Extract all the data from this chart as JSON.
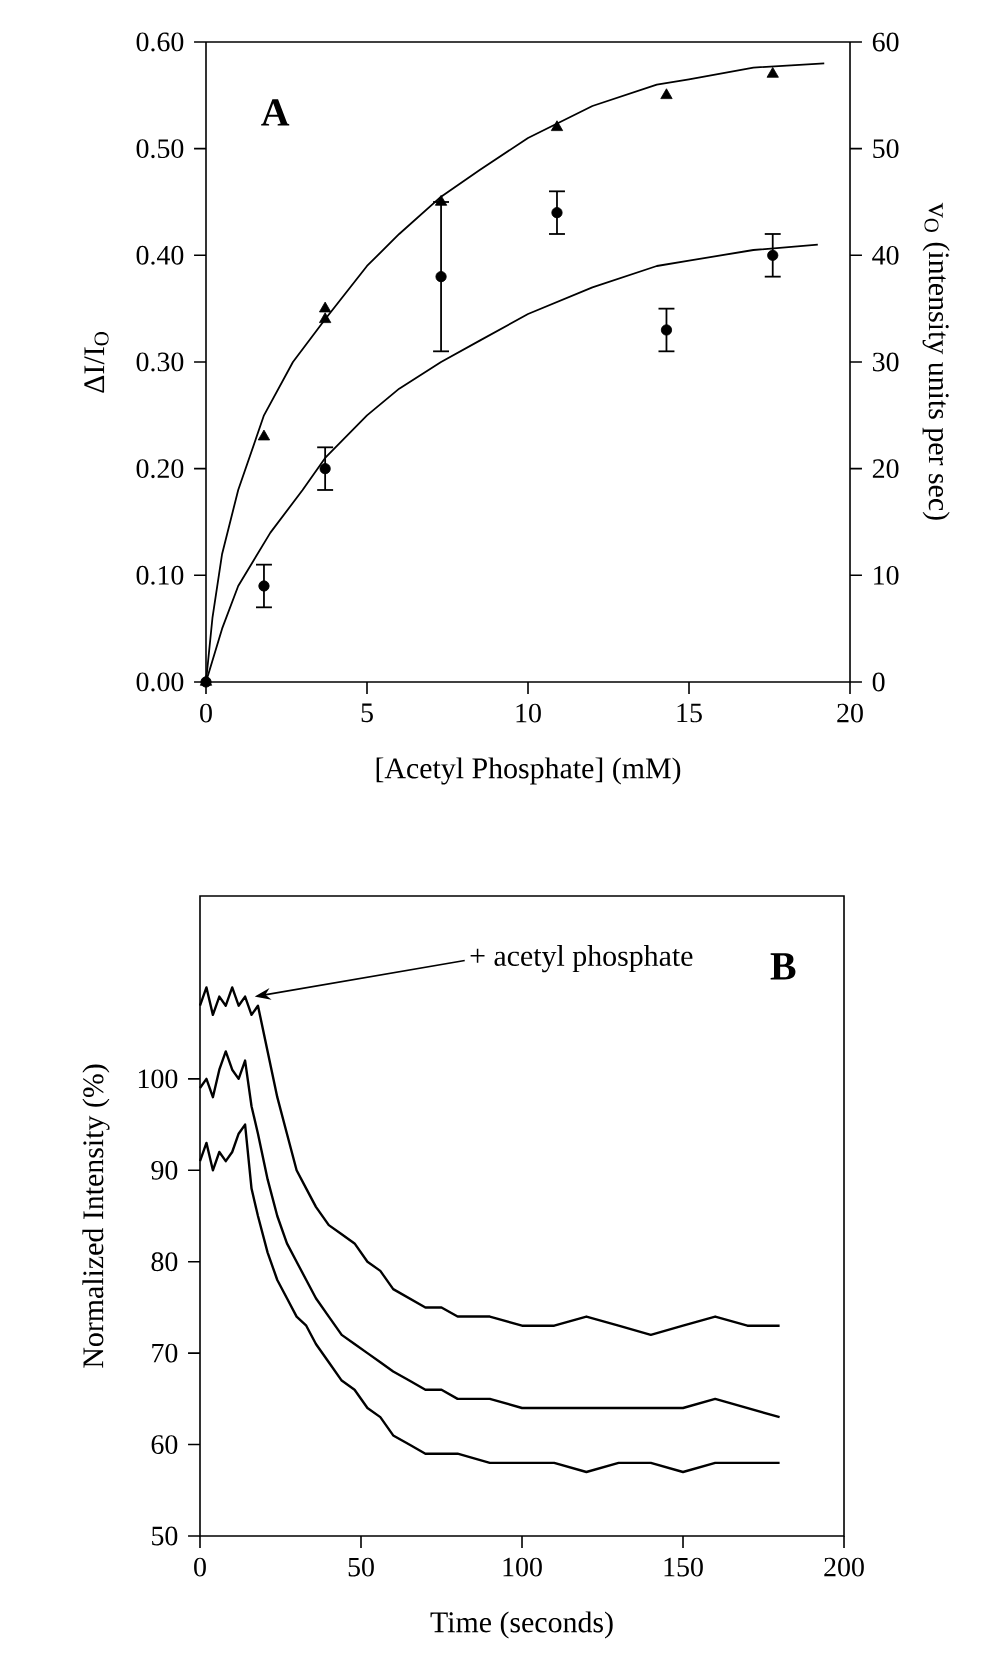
{
  "chart_data": [
    {
      "type": "scatter",
      "xlabel": "[Acetyl Phosphate] (mM)",
      "ylabel": "ΔI/I$_{O}$",
      "y2label": "v$_{O}$ (intensity units per sec)",
      "xlim": [
        0,
        20
      ],
      "xticks": [
        0,
        5,
        10,
        15,
        20
      ],
      "ylim": [
        0,
        0.6
      ],
      "yticks": [
        {
          "value": 0,
          "label": "0.00"
        },
        {
          "value": 0.1,
          "label": "0.10"
        },
        {
          "value": 0.2,
          "label": "0.20"
        },
        {
          "value": 0.3,
          "label": "0.30"
        },
        {
          "value": 0.4,
          "label": "0.40"
        },
        {
          "value": 0.5,
          "label": "0.50"
        },
        {
          "value": 0.6,
          "label": "0.60"
        }
      ],
      "y2lim": [
        0,
        60
      ],
      "y2ticks": [
        0,
        10,
        20,
        30,
        40,
        50,
        60
      ],
      "annotations": [
        "A"
      ],
      "series": [
        {
          "type": "line",
          "axis": "y2",
          "color": "#000000",
          "marker": "none",
          "x": [
            0,
            0.2,
            0.5,
            1,
            1.8,
            2.7,
            3.7,
            5,
            6,
            7.3,
            8.5,
            10,
            12,
            14,
            15,
            17,
            19.2
          ],
          "values": [
            0,
            6,
            12,
            18,
            25,
            30,
            34,
            39,
            42,
            45.5,
            48,
            51,
            54,
            56,
            56.5,
            57.6,
            58
          ]
        },
        {
          "type": "line",
          "color": "#000000",
          "marker": "none",
          "x": [
            0,
            0.5,
            1,
            2,
            3,
            3.7,
            5,
            6,
            7.3,
            8.5,
            10,
            12,
            14,
            15,
            17,
            19
          ],
          "values": [
            0,
            0.05,
            0.09,
            0.14,
            0.18,
            0.21,
            0.25,
            0.275,
            0.3,
            0.32,
            0.345,
            0.37,
            0.39,
            0.395,
            0.405,
            0.41
          ]
        },
        {
          "type": "scatter",
          "axis": "y2",
          "color": "#000000",
          "marker": "triangle",
          "x": [
            0,
            1.8,
            3.7,
            3.7,
            7.3,
            10.9,
            14.3,
            17.6
          ],
          "values": [
            0,
            23,
            35,
            34,
            45,
            52,
            55,
            57
          ]
        },
        {
          "type": "scatter",
          "color": "#000000",
          "marker": "circle",
          "x": [
            0,
            1.8,
            3.7,
            7.3,
            10.9,
            14.3,
            17.6
          ],
          "values": [
            0,
            0.09,
            0.2,
            0.38,
            0.44,
            0.33,
            0.4
          ],
          "errors": [
            null,
            0.02,
            0.02,
            0.07,
            0.02,
            0.02,
            0.02
          ]
        }
      ]
    },
    {
      "type": "line",
      "xlabel": "Time (seconds)",
      "ylabel": "Normalized Intensity (%)",
      "xlim": [
        0,
        200
      ],
      "xticks": [
        0,
        50,
        100,
        150,
        200
      ],
      "ylim": [
        50,
        120
      ],
      "yticks": [
        50,
        60,
        70,
        80,
        90,
        100
      ],
      "annotations": [
        "B",
        {
          "text": "+ acetyl phosphate",
          "x": 17,
          "y": 109
        }
      ],
      "x": [
        0,
        2,
        4,
        6,
        8,
        10,
        12,
        14,
        16,
        18,
        21,
        24,
        27,
        30,
        33,
        36,
        40,
        44,
        48,
        52,
        56,
        60,
        65,
        70,
        75,
        80,
        90,
        100,
        110,
        120,
        130,
        140,
        150,
        160,
        170,
        180
      ],
      "series": [
        {
          "color": "#000000",
          "values": [
            108,
            110,
            107,
            109,
            108,
            110,
            108,
            109,
            107,
            108,
            103,
            98,
            94,
            90,
            88,
            86,
            84,
            83,
            82,
            80,
            79,
            77,
            76,
            75,
            75,
            74,
            74,
            73,
            73,
            74,
            73,
            72,
            73,
            74,
            73,
            73
          ]
        },
        {
          "color": "#000000",
          "values": [
            99,
            100,
            98,
            101,
            103,
            101,
            100,
            102,
            97,
            94,
            89,
            85,
            82,
            80,
            78,
            76,
            74,
            72,
            71,
            70,
            69,
            68,
            67,
            66,
            66,
            65,
            65,
            64,
            64,
            64,
            64,
            64,
            64,
            65,
            64,
            63
          ]
        },
        {
          "color": "#000000",
          "values": [
            91,
            93,
            90,
            92,
            91,
            92,
            94,
            95,
            88,
            85,
            81,
            78,
            76,
            74,
            73,
            71,
            69,
            67,
            66,
            64,
            63,
            61,
            60,
            59,
            59,
            59,
            58,
            58,
            58,
            57,
            58,
            58,
            57,
            58,
            58,
            58
          ]
        }
      ]
    }
  ]
}
